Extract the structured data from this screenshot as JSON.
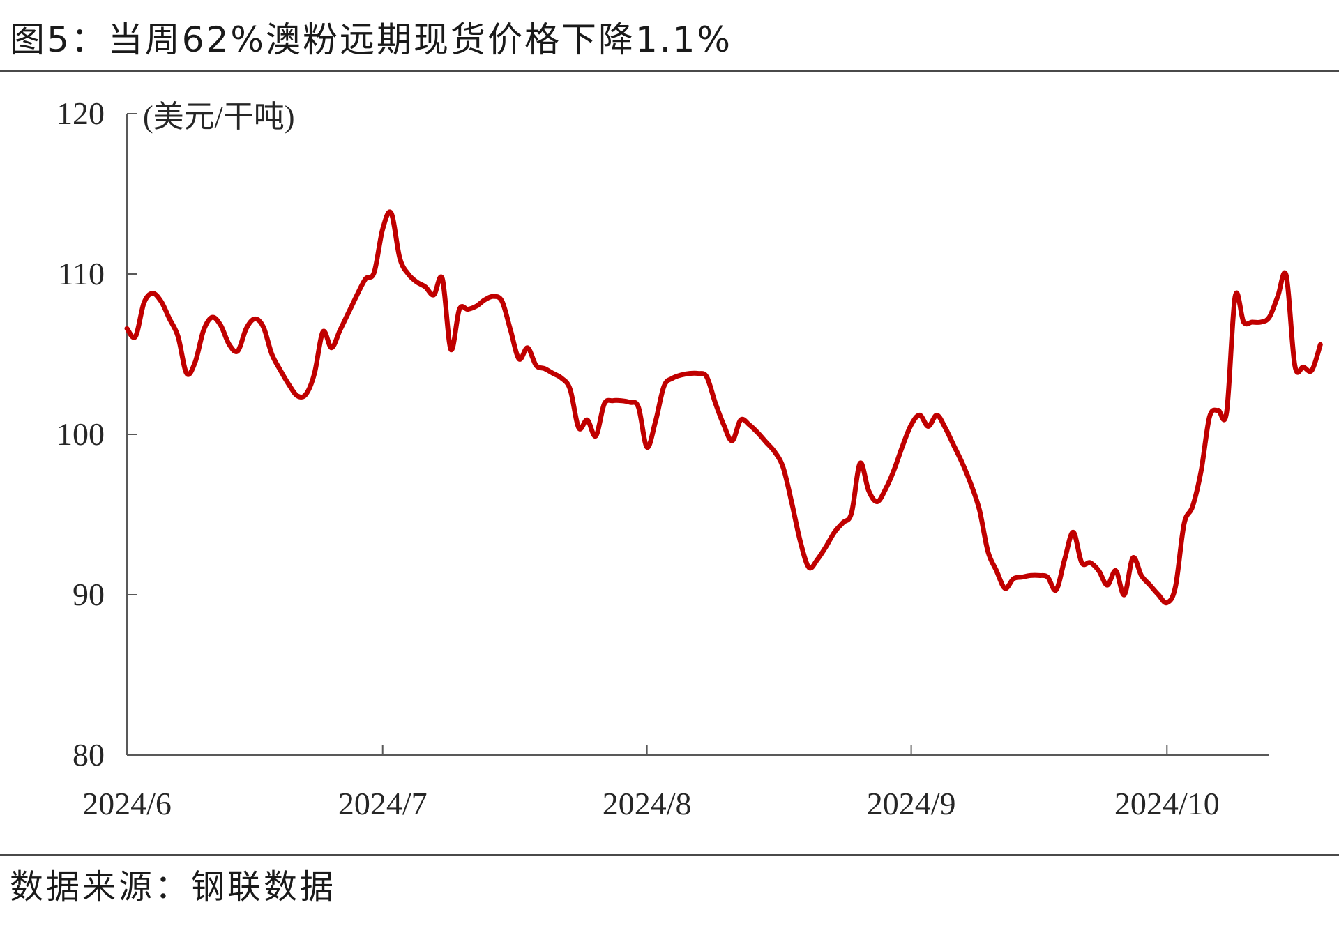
{
  "title": "图5：当周62%澳粉远期现货价格下降1.1%",
  "source": "数据来源：钢联数据",
  "chart_data": {
    "type": "line",
    "unit_label": "(美元/干吨)",
    "ylim": [
      80,
      120
    ],
    "y_ticks": [
      "80",
      "90",
      "100",
      "110",
      "120"
    ],
    "x_ticks": [
      "2024/6",
      "2024/7",
      "2024/8",
      "2024/9",
      "2024/10"
    ],
    "x_range": [
      "2024-06-01",
      "2024-10-13"
    ],
    "grid": false,
    "legend": "none",
    "series": [
      {
        "color": "#c00000",
        "points": [
          [
            "2024-06-01",
            106.6
          ],
          [
            "2024-06-02",
            106.1
          ],
          [
            "2024-06-03",
            108.2
          ],
          [
            "2024-06-04",
            108.8
          ],
          [
            "2024-06-05",
            108.3
          ],
          [
            "2024-06-06",
            107.2
          ],
          [
            "2024-06-07",
            106.1
          ],
          [
            "2024-06-08",
            103.8
          ],
          [
            "2024-06-09",
            104.5
          ],
          [
            "2024-06-10",
            106.5
          ],
          [
            "2024-06-11",
            107.3
          ],
          [
            "2024-06-12",
            106.8
          ],
          [
            "2024-06-13",
            105.6
          ],
          [
            "2024-06-14",
            105.2
          ],
          [
            "2024-06-15",
            106.6
          ],
          [
            "2024-06-16",
            107.2
          ],
          [
            "2024-06-17",
            106.7
          ],
          [
            "2024-06-18",
            105.0
          ],
          [
            "2024-06-19",
            104.0
          ],
          [
            "2024-06-20",
            103.1
          ],
          [
            "2024-06-21",
            102.4
          ],
          [
            "2024-06-22",
            102.5
          ],
          [
            "2024-06-23",
            103.8
          ],
          [
            "2024-06-24",
            106.4
          ],
          [
            "2024-06-25",
            105.4
          ],
          [
            "2024-06-26",
            106.5
          ],
          [
            "2024-06-27",
            107.6
          ],
          [
            "2024-06-28",
            108.7
          ],
          [
            "2024-06-29",
            109.7
          ],
          [
            "2024-06-30",
            110.1
          ],
          [
            "2024-07-01",
            112.8
          ],
          [
            "2024-07-02",
            113.8
          ],
          [
            "2024-07-03",
            111.0
          ],
          [
            "2024-07-04",
            110.0
          ],
          [
            "2024-07-05",
            109.5
          ],
          [
            "2024-07-06",
            109.2
          ],
          [
            "2024-07-07",
            108.7
          ],
          [
            "2024-07-08",
            109.7
          ],
          [
            "2024-07-09",
            105.3
          ],
          [
            "2024-07-10",
            107.8
          ],
          [
            "2024-07-11",
            107.8
          ],
          [
            "2024-07-12",
            108.0
          ],
          [
            "2024-07-13",
            108.4
          ],
          [
            "2024-07-14",
            108.6
          ],
          [
            "2024-07-15",
            108.3
          ],
          [
            "2024-07-16",
            106.5
          ],
          [
            "2024-07-17",
            104.7
          ],
          [
            "2024-07-18",
            105.4
          ],
          [
            "2024-07-19",
            104.3
          ],
          [
            "2024-07-20",
            104.1
          ],
          [
            "2024-07-21",
            103.8
          ],
          [
            "2024-07-22",
            103.5
          ],
          [
            "2024-07-23",
            102.8
          ],
          [
            "2024-07-24",
            100.4
          ],
          [
            "2024-07-25",
            100.9
          ],
          [
            "2024-07-26",
            99.9
          ],
          [
            "2024-07-27",
            101.9
          ],
          [
            "2024-07-28",
            102.1
          ],
          [
            "2024-07-29",
            102.1
          ],
          [
            "2024-07-30",
            102.0
          ],
          [
            "2024-07-31",
            101.7
          ],
          [
            "2024-08-01",
            99.2
          ],
          [
            "2024-08-02",
            100.8
          ],
          [
            "2024-08-03",
            103.0
          ],
          [
            "2024-08-04",
            103.5
          ],
          [
            "2024-08-05",
            103.7
          ],
          [
            "2024-08-06",
            103.8
          ],
          [
            "2024-08-07",
            103.8
          ],
          [
            "2024-08-08",
            103.6
          ],
          [
            "2024-08-09",
            102.0
          ],
          [
            "2024-08-10",
            100.6
          ],
          [
            "2024-08-11",
            99.6
          ],
          [
            "2024-08-12",
            100.9
          ],
          [
            "2024-08-13",
            100.6
          ],
          [
            "2024-08-14",
            100.1
          ],
          [
            "2024-08-15",
            99.5
          ],
          [
            "2024-08-16",
            98.9
          ],
          [
            "2024-08-17",
            97.9
          ],
          [
            "2024-08-18",
            95.7
          ],
          [
            "2024-08-19",
            93.3
          ],
          [
            "2024-08-20",
            91.7
          ],
          [
            "2024-08-21",
            92.2
          ],
          [
            "2024-08-22",
            93.0
          ],
          [
            "2024-08-23",
            93.9
          ],
          [
            "2024-08-24",
            94.5
          ],
          [
            "2024-08-25",
            95.1
          ],
          [
            "2024-08-26",
            98.2
          ],
          [
            "2024-08-27",
            96.5
          ],
          [
            "2024-08-28",
            95.8
          ],
          [
            "2024-08-29",
            96.6
          ],
          [
            "2024-08-30",
            97.8
          ],
          [
            "2024-08-31",
            99.3
          ],
          [
            "2024-09-01",
            100.6
          ],
          [
            "2024-09-02",
            101.2
          ],
          [
            "2024-09-03",
            100.5
          ],
          [
            "2024-09-04",
            101.2
          ],
          [
            "2024-09-05",
            100.4
          ],
          [
            "2024-09-06",
            99.3
          ],
          [
            "2024-09-07",
            98.2
          ],
          [
            "2024-09-08",
            96.9
          ],
          [
            "2024-09-09",
            95.3
          ],
          [
            "2024-09-10",
            92.7
          ],
          [
            "2024-09-11",
            91.5
          ],
          [
            "2024-09-12",
            90.4
          ],
          [
            "2024-09-13",
            91.0
          ],
          [
            "2024-09-14",
            91.1
          ],
          [
            "2024-09-15",
            91.2
          ],
          [
            "2024-09-16",
            91.2
          ],
          [
            "2024-09-17",
            91.1
          ],
          [
            "2024-09-18",
            90.3
          ],
          [
            "2024-09-19",
            92.2
          ],
          [
            "2024-09-20",
            93.9
          ],
          [
            "2024-09-21",
            92.0
          ],
          [
            "2024-09-22",
            92.0
          ],
          [
            "2024-09-23",
            91.5
          ],
          [
            "2024-09-24",
            90.6
          ],
          [
            "2024-09-25",
            91.5
          ],
          [
            "2024-09-26",
            90.0
          ],
          [
            "2024-09-27",
            92.3
          ],
          [
            "2024-09-28",
            91.2
          ],
          [
            "2024-09-29",
            90.6
          ],
          [
            "2024-09-30",
            90.0
          ],
          [
            "2024-10-01",
            89.5
          ],
          [
            "2024-10-02",
            90.5
          ],
          [
            "2024-10-03",
            94.4
          ],
          [
            "2024-10-04",
            95.5
          ],
          [
            "2024-10-05",
            97.7
          ],
          [
            "2024-10-06",
            101.1
          ],
          [
            "2024-10-07",
            101.5
          ],
          [
            "2024-10-08",
            101.4
          ],
          [
            "2024-10-09",
            108.6
          ],
          [
            "2024-10-10",
            107.0
          ],
          [
            "2024-10-11",
            107.0
          ],
          [
            "2024-10-12",
            107.0
          ],
          [
            "2024-10-13",
            107.3
          ],
          [
            "2024-10-14",
            108.6
          ],
          [
            "2024-10-15",
            109.9
          ],
          [
            "2024-10-16",
            104.3
          ],
          [
            "2024-10-17",
            104.2
          ],
          [
            "2024-10-18",
            104.0
          ],
          [
            "2024-10-19",
            105.6
          ]
        ]
      }
    ]
  }
}
